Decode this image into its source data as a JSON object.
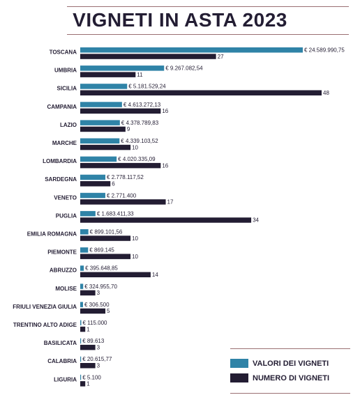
{
  "title": "VIGNETI IN ASTA 2023",
  "colors": {
    "value_bar": "#2f83a7",
    "count_bar": "#231d33"
  },
  "legend": {
    "value_label": "VALORI DEI VIGNETI",
    "count_label": "NUMERO DI VIGNETI"
  },
  "chart_data": {
    "type": "bar",
    "orientation": "horizontal",
    "title": "VIGNETI IN ASTA 2023",
    "categories": [
      "TOSCANA",
      "UMBRIA",
      "SICILIA",
      "CAMPANIA",
      "LAZIO",
      "MARCHE",
      "LOMBARDIA",
      "SARDEGNA",
      "VENETO",
      "PUGLIA",
      "EMILIA ROMAGNA",
      "PIEMONTE",
      "ABRUZZO",
      "MOLISE",
      "FRIULI VENEZIA GIULIA",
      "TRENTINO ALTO ADIGE",
      "BASILICATA",
      "CALABRIA",
      "LIGURIA"
    ],
    "series": [
      {
        "name": "VALORI DEI VIGNETI",
        "values": [
          24589990.75,
          9267082.54,
          5181529.24,
          4613272.13,
          4378789.83,
          4339103.52,
          4020335.09,
          2778117.52,
          2771400,
          1683411.33,
          899101.56,
          869145,
          395648.85,
          324955.7,
          306500,
          115000,
          89613,
          20615.77,
          5100
        ],
        "labels": [
          "€ 24.589.990,75",
          "€ 9.267.082,54",
          "€ 5.181.529,24",
          "€ 4.613.272,13",
          "€ 4.378.789,83",
          "€ 4.339.103,52",
          "€ 4.020.335,09",
          "€ 2.778.117,52",
          "€ 2.771.400",
          "€ 1.683.411,33",
          "€ 899.101,56",
          "€ 869.145",
          "€ 395.648,85",
          "€ 324.955,70",
          "€ 306.500",
          "€ 115.000",
          "€ 89.613",
          "€ 20.615,77",
          "€ 5.100"
        ]
      },
      {
        "name": "NUMERO DI VIGNETI",
        "values": [
          27,
          11,
          48,
          16,
          9,
          10,
          16,
          6,
          17,
          34,
          10,
          10,
          14,
          3,
          5,
          1,
          3,
          3,
          1
        ],
        "labels": [
          "27",
          "11",
          "48",
          "16",
          "9",
          "10",
          "16",
          "6",
          "17",
          "34",
          "10",
          "10",
          "14",
          "3",
          "5",
          "1",
          "3",
          "3",
          "1"
        ]
      }
    ]
  }
}
